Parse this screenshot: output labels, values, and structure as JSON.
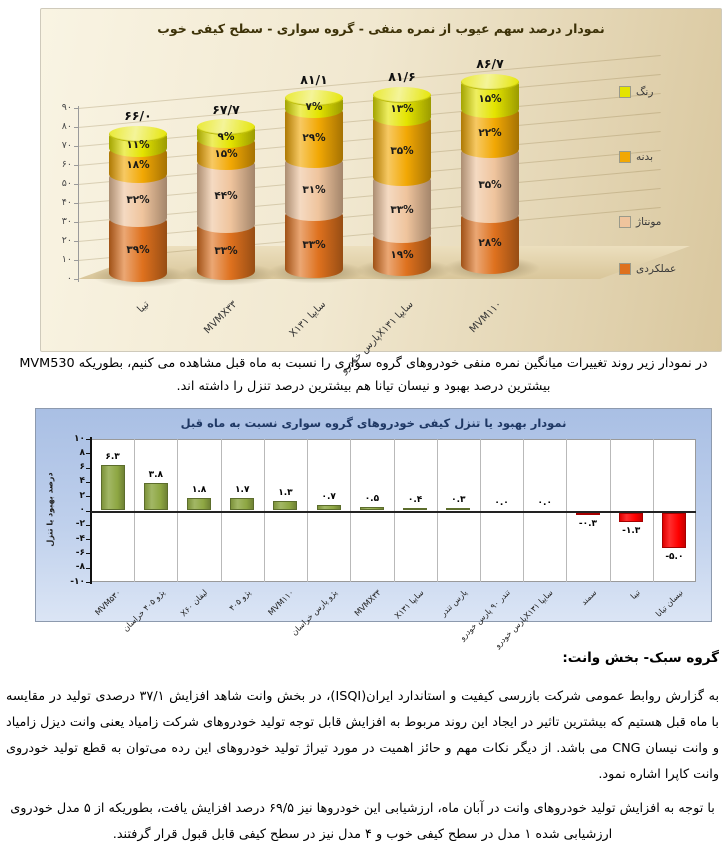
{
  "texts": {
    "p1": "در نمودار زیر روند تغییرات میانگین نمره منفی خودروهای گروه سواری را نسبت به ماه قبل مشاهده می کنیم، بطوریکه MVM530 بیشترین درصد بهبود و نیسان تیانا هم بیشترین درصد تنزل را داشته اند.",
    "h1": "گروه سبک- بخش وانت:",
    "p2": "به گزارش روابط عمومی شرکت بازرسی کیفیت و استاندارد ایران(ISQI)، در بخش وانت شاهد افزایش ۳۷/۱ درصدی تولید در مقایسه با ماه قبل هستیم که بیشترین تاثیر در ایجاد این روند مربوط به افزایش قابل توجه تولید خودروهای شرکت زامیاد یعنی وانت دیزل زامیاد و وانت نیسان CNG می باشد. از دیگر نکات مهم و حائز اهمیت در مورد تیراژ تولید خودروهای این رده می‌توان به قطع تولید خودروی وانت کاپرا اشاره نمود.",
    "p3": "با توجه به افزایش تولید خودروهای وانت در آبان ماه، ارزشیابی این خودروها نیز ۶۹/۵ درصد افزایش یافت، بطوریکه از ۵ مدل خودروی ارزشیابی شده ۱ مدل در سطح کیفی خوب و ۴ مدل نیز در سطح کیفی قابل قبول قرار گرفتند."
  },
  "chart_data": [
    {
      "type": "bar",
      "subtype": "3d-stacked-cylinder",
      "title": "نمودار درصد سهم عیوب از نمره منفی - گروه سواری - سطح کیفی خوب",
      "ylim": [
        0,
        90
      ],
      "y_ticks": [
        "۰",
        "۱۰",
        "۲۰",
        "۳۰",
        "۴۰",
        "۵۰",
        "۶۰",
        "۷۰",
        "۸۰",
        "۹۰"
      ],
      "legend_position": "right",
      "grid": true,
      "categories": [
        "تیبا",
        "MVMX۳۳",
        "سایپا X۱۳۱",
        "سایپا X۱۳۱پارس خودرو",
        "MVM۱۱۰"
      ],
      "totals": [
        "۶۶/۰",
        "۶۷/۷",
        "۸۱/۱",
        "۸۱/۶",
        "۸۶/۷"
      ],
      "totals_value": [
        66.0,
        67.7,
        81.1,
        81.6,
        86.7
      ],
      "series": [
        {
          "name": "عملکردی",
          "color": "#DE711E",
          "values": [
            39,
            33,
            33,
            19,
            28
          ],
          "labels": [
            "۳۹%",
            "۳۳%",
            "۳۳%",
            "۱۹%",
            "۲۸%"
          ]
        },
        {
          "name": "مونتاژ",
          "color": "#EFC49D",
          "values": [
            32,
            44,
            31,
            33,
            35
          ],
          "labels": [
            "۳۲%",
            "۴۴%",
            "۳۱%",
            "۳۳%",
            "۳۵%"
          ]
        },
        {
          "name": "بدنه",
          "color": "#F2A804",
          "values": [
            18,
            15,
            29,
            35,
            22
          ],
          "labels": [
            "۱۸%",
            "۱۵%",
            "۲۹%",
            "۳۵%",
            "۲۲%"
          ]
        },
        {
          "name": "رنگ",
          "color": "#E4E400",
          "values": [
            11,
            9,
            7,
            13,
            15
          ],
          "labels": [
            "۱۱%",
            "۹%",
            "۷%",
            "۱۳%",
            "۱۵%"
          ]
        }
      ]
    },
    {
      "type": "bar",
      "title": "نمودار بهبود یا تنزل کیفی خودروهای گروه سواری نسبت به ماه قبل",
      "ylabel": "درصد بهبود یا تنزل",
      "ylim": [
        -10,
        10
      ],
      "grid": true,
      "y_ticks": [
        "۱۰",
        "۸",
        "۶",
        "۴",
        "۲",
        "۰",
        "-۲",
        "-۴",
        "-۶",
        "-۸",
        "-۱۰"
      ],
      "categories": [
        "MVM۵۳۰",
        "پژو ۴۰۵ خراسان",
        "لیفان X۶۰",
        "پژو ۴۰۵",
        "MVM۱۱۰",
        "پژو پارس خراسان",
        "MVMX۳۳",
        "سایپا X۱۳۱",
        "پارس تندر",
        "تندر ۹۰ پارس خودرو",
        "سایپا X۱۳۱پارس خودرو",
        "سمند",
        "تیبا",
        "نیسان تیانا"
      ],
      "values": [
        6.3,
        3.8,
        1.8,
        1.7,
        1.3,
        0.7,
        0.5,
        0.4,
        0.3,
        0.0,
        0.0,
        -0.3,
        -1.3,
        -5.0
      ],
      "labels": [
        "۶.۳",
        "۳.۸",
        "۱.۸",
        "۱.۷",
        "۱.۳",
        "۰.۷",
        "۰.۵",
        "۰.۴",
        "۰.۳",
        "۰.۰",
        "۰.۰",
        "-۰.۳",
        "-۱.۳",
        "-۵.۰"
      ],
      "positive_color": "#8EA743",
      "negative_color": "#FF0000",
      "plot_bg": "#FFFFFF"
    }
  ]
}
